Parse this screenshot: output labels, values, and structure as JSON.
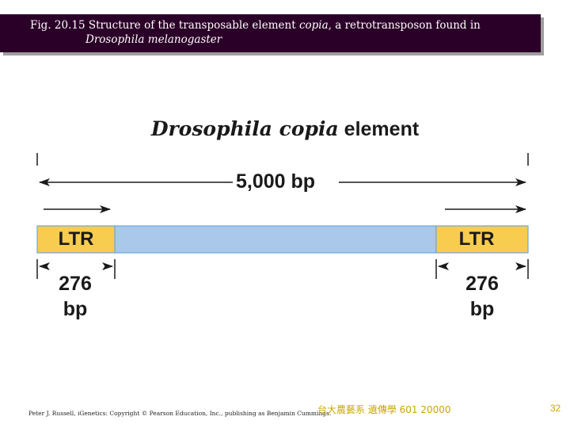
{
  "slide": {
    "caption_line1_prefix": "Fig. 20.15  Structure of the transposable element ",
    "caption_line1_italic": "copia",
    "caption_line1_suffix": ", a retrotransposon found in",
    "caption_line2": "Drosophila melanogaster"
  },
  "diagram": {
    "title_italic": "Drosophila copia",
    "title_rest": " element",
    "total_length": "5,000 bp",
    "left_ltr_label": "LTR",
    "right_ltr_label": "LTR",
    "left_ltr_length_number": "276",
    "left_ltr_length_unit": "bp",
    "right_ltr_length_number": "276",
    "right_ltr_length_unit": "bp",
    "colors": {
      "ltr_fill": "#f7cc4f",
      "internal_fill": "#a9c8ea",
      "ltr_border": "#6fa6dd"
    }
  },
  "footer": {
    "credit": "Peter J. Russell, iGenetics: Copyright © Pearson Education, Inc., publishing as Benjamin Cummings.",
    "course": "台大農藝系 遺傳學 601 20000",
    "page_number": "32"
  }
}
